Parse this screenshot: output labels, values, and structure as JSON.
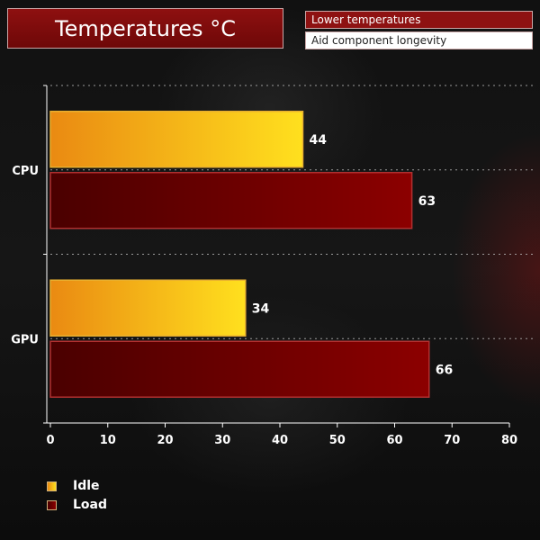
{
  "header": {
    "title": "Temperatures °C",
    "tags": [
      "Lower temperatures",
      "Aid component longevity"
    ]
  },
  "colors": {
    "idle_light": "#ffe01e",
    "idle_dark": "#ea8a12",
    "load_light": "#8c0000",
    "load_dark": "#4a0000",
    "accent": "#8e1010"
  },
  "chart_data": {
    "type": "bar",
    "orientation": "horizontal",
    "categories": [
      "CPU",
      "GPU"
    ],
    "series": [
      {
        "name": "Idle",
        "values": [
          44,
          34
        ]
      },
      {
        "name": "Load",
        "values": [
          63,
          66
        ]
      }
    ],
    "title": "Temperatures °C",
    "xlabel": "",
    "ylabel": "",
    "xlim": [
      0,
      80
    ],
    "xticks": [
      "0",
      "10",
      "20",
      "30",
      "40",
      "50",
      "60",
      "70",
      "80"
    ],
    "grid": "dotted horizontal",
    "legend_position": "bottom-left"
  }
}
